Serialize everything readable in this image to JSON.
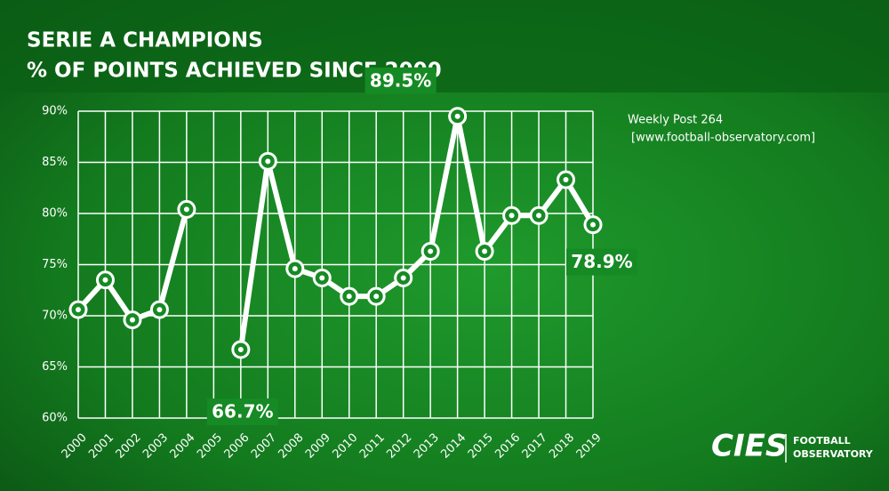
{
  "chart_data": {
    "type": "line",
    "title": "SERIE A CHAMPIONS",
    "subtitle": "% OF POINTS ACHIEVED SINCE 2000",
    "annotations": [
      "Weekly Post 264",
      "[www.football-observatory.com]"
    ],
    "logo": {
      "name": "CIES",
      "line1": "FOOTBALL",
      "line2": "OBSERVATORY"
    },
    "categories": [
      "2000",
      "2001",
      "2002",
      "2003",
      "2004",
      "2005",
      "2006",
      "2007",
      "2008",
      "2009",
      "2010",
      "2011",
      "2012",
      "2013",
      "2014",
      "2015",
      "2016",
      "2017",
      "2018",
      "2019"
    ],
    "series": [
      {
        "name": "% of points",
        "color": "#ffffff",
        "values": [
          70.6,
          73.5,
          69.6,
          70.6,
          80.4,
          null,
          66.7,
          85.1,
          74.6,
          73.7,
          71.9,
          71.9,
          73.7,
          76.3,
          89.5,
          76.3,
          79.8,
          79.8,
          83.3,
          78.9
        ],
        "value_labels": [
          null,
          null,
          null,
          null,
          null,
          null,
          "66.7%",
          null,
          null,
          null,
          null,
          null,
          null,
          null,
          "89.5%",
          null,
          null,
          null,
          null,
          "78.9%"
        ]
      }
    ],
    "ylim": [
      60,
      90
    ],
    "yticks": [
      {
        "value": 60,
        "label": "60%"
      },
      {
        "value": 65,
        "label": "65%"
      },
      {
        "value": 70,
        "label": "70%"
      },
      {
        "value": 75,
        "label": "75%"
      },
      {
        "value": 80,
        "label": "80%"
      },
      {
        "value": 85,
        "label": "85%"
      },
      {
        "value": 90,
        "label": "90%"
      }
    ],
    "grid": true
  }
}
